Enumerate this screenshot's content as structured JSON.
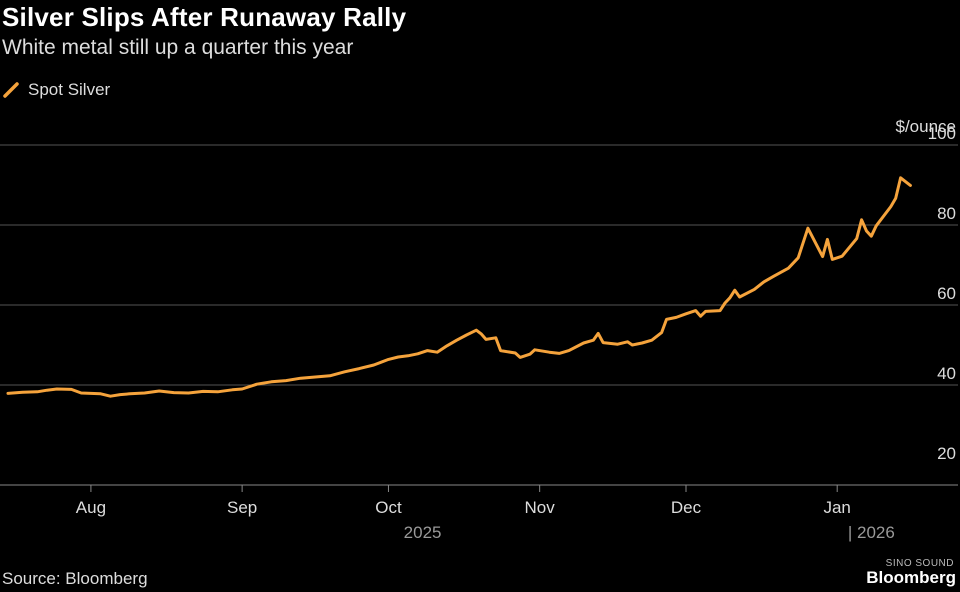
{
  "title": "Silver Slips After Runaway Rally",
  "subtitle": "White metal still up a quarter this year",
  "legend_label": "Spot Silver",
  "source": "Source: Bloomberg",
  "brand": "Bloomberg",
  "watermark": "SINO SOUND",
  "colors": {
    "series": "#f5a33c",
    "grid": "#555555",
    "background": "#000000"
  },
  "chart_data": {
    "type": "line",
    "title": "Silver Slips After Runaway Rally",
    "subtitle": "White metal still up a quarter this year",
    "ylabel": "$/ounce",
    "ylim": [
      15,
      100
    ],
    "yticks": [
      20,
      40,
      60,
      80,
      100
    ],
    "grid": true,
    "legend_position": "top-left",
    "x_range": [
      "2025-07-15",
      "2026-02-01"
    ],
    "month_ticks": [
      {
        "label": "Aug",
        "date": "2025-08-01"
      },
      {
        "label": "Sep",
        "date": "2025-09-01"
      },
      {
        "label": "Oct",
        "date": "2025-10-01"
      },
      {
        "label": "Nov",
        "date": "2025-11-01"
      },
      {
        "label": "Dec",
        "date": "2025-12-01"
      },
      {
        "label": "Jan",
        "date": "2026-01-01"
      }
    ],
    "year_ticks": [
      {
        "label": "2025",
        "date": "2025-10-08",
        "divider": false
      },
      {
        "label": "| 2026",
        "date": "2026-01-08",
        "divider": false
      }
    ],
    "series": [
      {
        "name": "Spot Silver",
        "points": [
          [
            "2025-07-15",
            37.9
          ],
          [
            "2025-07-18",
            38.2
          ],
          [
            "2025-07-21",
            38.3
          ],
          [
            "2025-07-23",
            38.7
          ],
          [
            "2025-07-25",
            39.0
          ],
          [
            "2025-07-28",
            38.9
          ],
          [
            "2025-07-30",
            38.0
          ],
          [
            "2025-08-01",
            37.9
          ],
          [
            "2025-08-03",
            37.8
          ],
          [
            "2025-08-05",
            37.2
          ],
          [
            "2025-08-07",
            37.6
          ],
          [
            "2025-08-09",
            37.8
          ],
          [
            "2025-08-12",
            38.0
          ],
          [
            "2025-08-15",
            38.5
          ],
          [
            "2025-08-18",
            38.1
          ],
          [
            "2025-08-21",
            38.0
          ],
          [
            "2025-08-24",
            38.4
          ],
          [
            "2025-08-27",
            38.3
          ],
          [
            "2025-08-30",
            38.8
          ],
          [
            "2025-09-01",
            39.0
          ],
          [
            "2025-09-04",
            40.2
          ],
          [
            "2025-09-07",
            40.8
          ],
          [
            "2025-09-10",
            41.1
          ],
          [
            "2025-09-13",
            41.7
          ],
          [
            "2025-09-16",
            42.0
          ],
          [
            "2025-09-19",
            42.3
          ],
          [
            "2025-09-22",
            43.3
          ],
          [
            "2025-09-25",
            44.1
          ],
          [
            "2025-09-28",
            45.0
          ],
          [
            "2025-10-01",
            46.4
          ],
          [
            "2025-10-03",
            47.0
          ],
          [
            "2025-10-05",
            47.3
          ],
          [
            "2025-10-07",
            47.8
          ],
          [
            "2025-10-09",
            48.6
          ],
          [
            "2025-10-11",
            48.2
          ],
          [
            "2025-10-13",
            49.8
          ],
          [
            "2025-10-15",
            51.2
          ],
          [
            "2025-10-17",
            52.5
          ],
          [
            "2025-10-19",
            53.7
          ],
          [
            "2025-10-20",
            52.8
          ],
          [
            "2025-10-21",
            51.4
          ],
          [
            "2025-10-23",
            51.8
          ],
          [
            "2025-10-24",
            48.6
          ],
          [
            "2025-10-27",
            48.0
          ],
          [
            "2025-10-28",
            46.9
          ],
          [
            "2025-10-30",
            47.7
          ],
          [
            "2025-10-31",
            48.8
          ],
          [
            "2025-11-03",
            48.2
          ],
          [
            "2025-11-05",
            47.9
          ],
          [
            "2025-11-07",
            48.6
          ],
          [
            "2025-11-10",
            50.5
          ],
          [
            "2025-11-12",
            51.2
          ],
          [
            "2025-11-13",
            52.9
          ],
          [
            "2025-11-14",
            50.6
          ],
          [
            "2025-11-17",
            50.2
          ],
          [
            "2025-11-19",
            50.8
          ],
          [
            "2025-11-20",
            50.0
          ],
          [
            "2025-11-22",
            50.5
          ],
          [
            "2025-11-24",
            51.2
          ],
          [
            "2025-11-26",
            53.1
          ],
          [
            "2025-11-27",
            56.4
          ],
          [
            "2025-11-29",
            56.9
          ],
          [
            "2025-12-01",
            57.8
          ],
          [
            "2025-12-03",
            58.6
          ],
          [
            "2025-12-04",
            57.2
          ],
          [
            "2025-12-05",
            58.4
          ],
          [
            "2025-12-08",
            58.6
          ],
          [
            "2025-12-09",
            60.5
          ],
          [
            "2025-12-10",
            61.8
          ],
          [
            "2025-12-11",
            63.7
          ],
          [
            "2025-12-12",
            62.0
          ],
          [
            "2025-12-15",
            63.9
          ],
          [
            "2025-12-17",
            65.8
          ],
          [
            "2025-12-19",
            67.2
          ],
          [
            "2025-12-22",
            69.2
          ],
          [
            "2025-12-24",
            71.8
          ],
          [
            "2025-12-26",
            79.2
          ],
          [
            "2025-12-29",
            72.1
          ],
          [
            "2025-12-30",
            76.4
          ],
          [
            "2025-12-31",
            71.4
          ],
          [
            "2026-01-02",
            72.2
          ],
          [
            "2026-01-05",
            76.6
          ],
          [
            "2026-01-06",
            81.3
          ],
          [
            "2026-01-07",
            78.5
          ],
          [
            "2026-01-08",
            77.2
          ],
          [
            "2026-01-09",
            79.8
          ],
          [
            "2026-01-12",
            84.6
          ],
          [
            "2026-01-13",
            86.7
          ],
          [
            "2026-01-14",
            91.8
          ],
          [
            "2026-01-16",
            89.9
          ]
        ]
      }
    ]
  }
}
